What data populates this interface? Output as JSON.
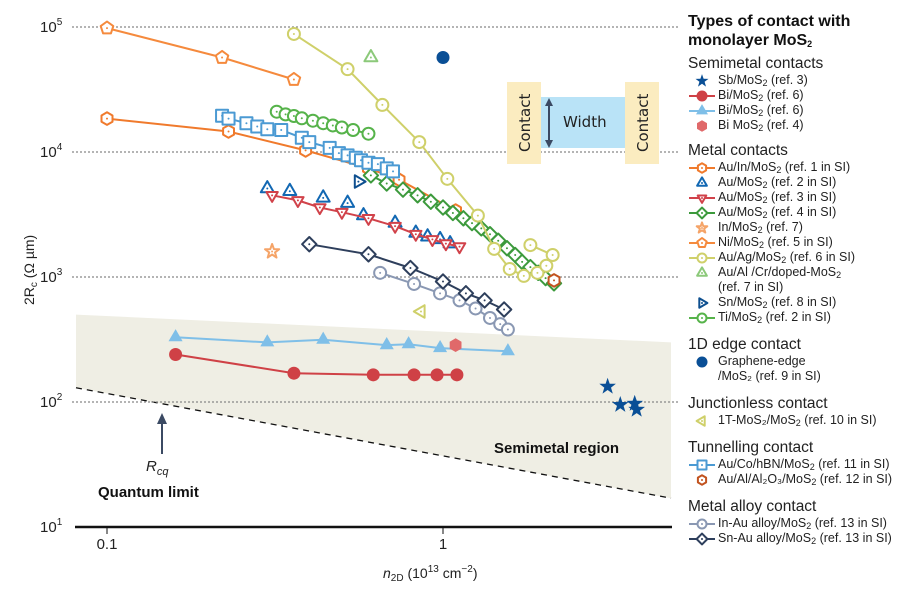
{
  "chart_data": {
    "type": "scatter",
    "title": "",
    "xlabel": "n2D (10^13 cm^-2)",
    "ylabel": "2Rc (Ω µm)",
    "xscale": "log",
    "yscale": "log",
    "xlim": [
      0.08,
      4.7
    ],
    "ylim": [
      10,
      100000
    ],
    "xticks": [
      {
        "value": 0.1,
        "label": "0.1"
      },
      {
        "value": 1,
        "label": "1"
      }
    ],
    "yticks": [
      {
        "value": 100000,
        "base": "10",
        "exp": "5"
      },
      {
        "value": 10000,
        "base": "10",
        "exp": "4"
      },
      {
        "value": 1000,
        "base": "10",
        "exp": "3"
      },
      {
        "value": 100,
        "base": "10",
        "exp": "2"
      },
      {
        "value": 10,
        "base": "10",
        "exp": "1"
      }
    ],
    "grid": "dotted horizontal at decades",
    "legend_position": "right",
    "annotations": {
      "semimetal_region": "Semimetal region",
      "quantum_limit": "Quantum limit",
      "rcq": "R",
      "rcq_sub": "cq",
      "inset_contact": "Contact",
      "inset_width": "Width"
    },
    "quantum_limit_line": {
      "x": [
        0.08,
        4.7
      ],
      "y": [
        130,
        17
      ]
    },
    "semimetal_region_top": {
      "x": [
        0.08,
        4.7
      ],
      "y": [
        500,
        300
      ]
    },
    "series": [
      {
        "id": "sb",
        "group": "semimetal",
        "name": "Sb/MoS2 (ref. 3)",
        "marker": "star",
        "color": "#0a4f96",
        "fill": true,
        "line": false,
        "x": [
          3.09,
          3.37,
          3.72,
          3.77
        ],
        "y": [
          133,
          95,
          97,
          87
        ]
      },
      {
        "id": "bi-circle",
        "group": "semimetal",
        "name": "Bi/MoS2 (ref. 6)",
        "marker": "circle",
        "color": "#cf4146",
        "fill": true,
        "line": true,
        "x": [
          0.16,
          0.36,
          0.62,
          0.82,
          0.96,
          1.1
        ],
        "y": [
          240,
          170,
          165,
          165,
          165,
          165
        ]
      },
      {
        "id": "bi-triangle",
        "group": "semimetal",
        "name": "Bi/MoS2 (ref. 6)",
        "marker": "triangle",
        "color": "#7fbfe8",
        "fill": true,
        "line": true,
        "x": [
          0.16,
          0.3,
          0.44,
          0.68,
          0.79,
          0.98,
          1.56
        ],
        "y": [
          330,
          300,
          315,
          285,
          290,
          270,
          255
        ]
      },
      {
        "id": "bi-hex",
        "group": "semimetal",
        "name": "Bi MoS2 (ref. 4)",
        "marker": "hexagon",
        "color": "#e0696a",
        "fill": true,
        "line": false,
        "x": [
          1.09
        ],
        "y": [
          285
        ]
      },
      {
        "id": "au-in",
        "group": "metal",
        "name": "Au/In/MoS2 (ref. 1 in SI)",
        "marker": "hexagon",
        "color": "#f07a2c",
        "fill": false,
        "line": true,
        "x": [
          0.1,
          0.23,
          0.39,
          0.6,
          0.74,
          1.09
        ],
        "y": [
          18500,
          14600,
          10300,
          7400,
          6000,
          3400
        ]
      },
      {
        "id": "au2",
        "group": "metal",
        "name": "Au/MoS2 (ref. 2 in SI)",
        "marker": "triangle",
        "color": "#1268b3",
        "fill": false,
        "line": false,
        "x": [
          0.3,
          0.35,
          0.44,
          0.52,
          0.58,
          0.72,
          0.83,
          0.9,
          0.98,
          1.05
        ],
        "y": [
          5100,
          4850,
          4300,
          3900,
          3100,
          2700,
          2250,
          2100,
          2000,
          1850
        ]
      },
      {
        "id": "au3",
        "group": "metal",
        "name": "Au/MoS2 (ref. 3 in SI)",
        "marker": "triangle-down",
        "color": "#d1424a",
        "fill": false,
        "line": true,
        "x": [
          0.31,
          0.37,
          0.43,
          0.5,
          0.6,
          0.72,
          0.83,
          0.93,
          1.02,
          1.12
        ],
        "y": [
          4500,
          4100,
          3600,
          3300,
          2950,
          2550,
          2200,
          2000,
          1850,
          1750
        ]
      },
      {
        "id": "au4",
        "group": "metal",
        "name": "Au/MoS2 (ref. 4 in SI)",
        "marker": "diamond",
        "color": "#3c9a3c",
        "fill": false,
        "line": true,
        "x": [
          0.61,
          0.68,
          0.76,
          0.84,
          0.92,
          1.0,
          1.07,
          1.15,
          1.22,
          1.3,
          1.38,
          1.46,
          1.55,
          1.64,
          1.72,
          1.82,
          1.92,
          2.02,
          2.14
        ],
        "y": [
          6500,
          5600,
          5000,
          4500,
          4000,
          3600,
          3250,
          2950,
          2700,
          2450,
          2200,
          1950,
          1700,
          1500,
          1320,
          1200,
          1080,
          980,
          890
        ]
      },
      {
        "id": "in7",
        "group": "metal",
        "name": "In/MoS2 (ref. 7)",
        "marker": "star-open",
        "color": "#f5a468",
        "fill": false,
        "line": false,
        "x": [
          0.31
        ],
        "y": [
          1600
        ]
      },
      {
        "id": "ni",
        "group": "metal",
        "name": "Ni/MoS2 (ref. 5 in SI)",
        "marker": "pentagon",
        "color": "#f58a3d",
        "fill": false,
        "line": true,
        "x": [
          0.1,
          0.22,
          0.36
        ],
        "y": [
          98000,
          57000,
          38000
        ]
      },
      {
        "id": "au-ag",
        "group": "metal",
        "name": "Au/Ag/MoS2 (ref. 6 in SI)",
        "marker": "circle",
        "color": "#cfd06a",
        "fill": false,
        "line": true,
        "x": [
          0.36,
          0.52,
          0.66,
          0.85,
          1.03,
          1.27,
          1.42,
          1.58,
          1.74,
          1.91,
          2.03,
          2.12,
          1.82
        ],
        "y": [
          88000,
          46000,
          23800,
          12000,
          6100,
          3100,
          1680,
          1160,
          1020,
          1080,
          1230,
          1500,
          1800
        ]
      },
      {
        "id": "au-al-cr",
        "group": "metal",
        "name": "Au/Al /Cr/doped-MoS2 (ref. 7 in SI)",
        "marker": "triangle",
        "color": "#8cc97a",
        "fill": false,
        "line": false,
        "x": [
          0.61
        ],
        "y": [
          57000
        ]
      },
      {
        "id": "sn",
        "group": "metal",
        "name": "Sn/MoS2 (ref. 8 in SI)",
        "marker": "triangle-right",
        "color": "#0e4f8f",
        "fill": false,
        "line": false,
        "x": [
          0.56
        ],
        "y": [
          5800
        ]
      },
      {
        "id": "ti",
        "group": "metal",
        "name": "Ti/MoS2 (ref. 2 in SI)",
        "marker": "circle",
        "color": "#56b34a",
        "fill": false,
        "line": true,
        "x": [
          0.32,
          0.34,
          0.36,
          0.38,
          0.41,
          0.44,
          0.47,
          0.5,
          0.54,
          0.6
        ],
        "y": [
          21000,
          20000,
          19400,
          18600,
          17800,
          17000,
          16300,
          15700,
          15000,
          14000
        ]
      },
      {
        "id": "graphene",
        "group": "1d-edge",
        "name": "Graphene-edge /MoS2 (ref. 9 in SI)",
        "marker": "circle",
        "color": "#0a4f96",
        "fill": true,
        "line": false,
        "x": [
          1.0
        ],
        "y": [
          57000
        ]
      },
      {
        "id": "1t",
        "group": "junctionless",
        "name": "1T-MoS2/MoS2 (ref. 10 in SI)",
        "marker": "triangle-left",
        "color": "#cfd06a",
        "fill": false,
        "line": false,
        "x": [
          0.86
        ],
        "y": [
          530
        ]
      },
      {
        "id": "hbn",
        "group": "tunnelling",
        "name": "Au/Co/hBN/MoS2 (ref. 11 in SI)",
        "marker": "square",
        "color": "#4b9ad3",
        "fill": false,
        "line": true,
        "x": [
          0.22,
          0.23,
          0.26,
          0.28,
          0.3,
          0.33,
          0.38,
          0.4,
          0.46,
          0.49,
          0.52,
          0.55,
          0.57,
          0.6,
          0.64,
          0.68,
          0.71
        ],
        "y": [
          19500,
          18500,
          17000,
          16000,
          15200,
          15000,
          13000,
          12000,
          10800,
          9800,
          9400,
          9000,
          8600,
          8200,
          8000,
          7400,
          7000
        ]
      },
      {
        "id": "al2o3",
        "group": "tunnelling",
        "name": "Au/Al/Al2O3/MoS2 (ref. 12 in SI)",
        "marker": "hexagon",
        "color": "#c2531f",
        "fill": false,
        "line": false,
        "x": [
          2.14
        ],
        "y": [
          940
        ]
      },
      {
        "id": "in-au",
        "group": "alloy",
        "name": "In-Au alloy/MoS2 (ref. 13 in SI)",
        "marker": "circle",
        "color": "#8a98b3",
        "fill": false,
        "line": true,
        "x": [
          0.65,
          0.82,
          0.98,
          1.12,
          1.25,
          1.38,
          1.48,
          1.56
        ],
        "y": [
          1080,
          880,
          740,
          650,
          560,
          470,
          420,
          380
        ]
      },
      {
        "id": "sn-au",
        "group": "alloy",
        "name": "Sn-Au alloy/MoS2 (ref. 13 in SI)",
        "marker": "diamond",
        "color": "#2e3f5c",
        "fill": false,
        "line": true,
        "x": [
          0.4,
          0.6,
          0.8,
          1.0,
          1.17,
          1.33,
          1.52
        ],
        "y": [
          1830,
          1520,
          1180,
          920,
          740,
          650,
          550
        ]
      }
    ]
  },
  "legend": {
    "title_line1": "Types of contact with",
    "title_line2": "monolayer MoS",
    "title_sub": "2",
    "groups": [
      {
        "label": "Semimetal contacts",
        "items": [
          {
            "series": "sb",
            "pre": "Sb/MoS",
            "sub": "2",
            "post": " (ref. 3)"
          },
          {
            "series": "bi-circle",
            "pre": "Bi/MoS",
            "sub": "2",
            "post": " (ref. 6)"
          },
          {
            "series": "bi-triangle",
            "pre": "Bi/MoS",
            "sub": "2",
            "post": " (ref. 6)"
          },
          {
            "series": "bi-hex",
            "pre": "Bi MoS",
            "sub": "2",
            "post": " (ref. 4)"
          }
        ]
      },
      {
        "label": "Metal contacts",
        "items": [
          {
            "series": "au-in",
            "pre": "Au/In/MoS",
            "sub": "2",
            "post": " (ref. 1 in SI)"
          },
          {
            "series": "au2",
            "pre": "Au/MoS",
            "sub": "2",
            "post": " (ref. 2 in SI)"
          },
          {
            "series": "au3",
            "pre": "Au/MoS",
            "sub": "2",
            "post": " (ref. 3 in SI)"
          },
          {
            "series": "au4",
            "pre": "Au/MoS",
            "sub": "2",
            "post": " (ref. 4 in SI)"
          },
          {
            "series": "in7",
            "pre": "In/MoS",
            "sub": "2",
            "post": " (ref. 7)"
          },
          {
            "series": "ni",
            "pre": "Ni/MoS",
            "sub": "2",
            "post": " (ref. 5 in SI)"
          },
          {
            "series": "au-ag",
            "pre": "Au/Ag/MoS",
            "sub": "2",
            "post": " (ref. 6 in SI)"
          },
          {
            "series": "au-al-cr",
            "pre": "Au/Al /Cr/doped-MoS",
            "sub": "2",
            "post": "",
            "line2": "(ref. 7 in SI)"
          },
          {
            "series": "sn",
            "pre": "Sn/MoS",
            "sub": "2",
            "post": " (ref. 8 in SI)"
          },
          {
            "series": "ti",
            "pre": "Ti/MoS",
            "sub": "2",
            "post": " (ref. 2 in SI)"
          }
        ]
      },
      {
        "label": "1D edge contact",
        "items": [
          {
            "series": "graphene",
            "pre": "Graphene-edge",
            "sub": "",
            "post": "",
            "line2": "/MoS₂ (ref. 9 in SI)"
          }
        ]
      },
      {
        "label": "Junctionless contact",
        "items": [
          {
            "series": "1t",
            "pre": "1T-MoS₂/MoS",
            "sub": "2",
            "post": " (ref. 10 in SI)"
          }
        ]
      },
      {
        "label": "Tunnelling contact",
        "items": [
          {
            "series": "hbn",
            "pre": "Au/Co/hBN/MoS",
            "sub": "2",
            "post": " (ref. 11 in SI)"
          },
          {
            "series": "al2o3",
            "pre": "Au/Al/Al₂O₃/MoS",
            "sub": "2",
            "post": " (ref. 12 in SI)"
          }
        ]
      },
      {
        "label": "Metal alloy contact",
        "items": [
          {
            "series": "in-au",
            "pre": "In-Au alloy/MoS",
            "sub": "2",
            "post": " (ref. 13 in SI)"
          },
          {
            "series": "sn-au",
            "pre": "Sn-Au alloy/MoS",
            "sub": "2",
            "post": " (ref. 13 in SI)"
          }
        ]
      }
    ]
  },
  "colors": {
    "region_fill": "#efeee4",
    "grid": "#888888",
    "axis": "#111111",
    "inset_contact": "#fbecc0",
    "inset_channel": "#b9e3f7",
    "arrow": "#3b4a63"
  }
}
